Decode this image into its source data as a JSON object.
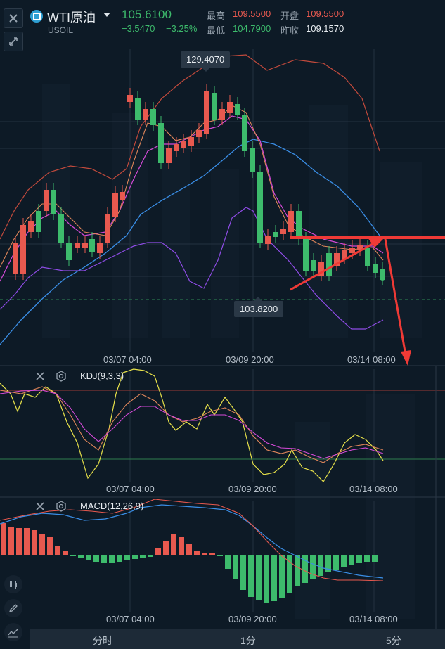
{
  "header": {
    "symbol": "WTI原油",
    "code": "USOIL",
    "price": "105.6100",
    "change": "−3.5470",
    "change_pct": "−3.25%",
    "stats": {
      "high_label": "最高",
      "high_value": "109.5500",
      "low_label": "最低",
      "low_value": "104.7900",
      "open_label": "开盘",
      "open_value": "109.5500",
      "prev_close_label": "昨收",
      "prev_close_value": "109.1570"
    }
  },
  "main_chart": {
    "high_marker": "129.4070",
    "low_marker": "103.8200",
    "time_labels": [
      "03/07 04:00",
      "03/09 20:00",
      "03/14 08:00"
    ]
  },
  "kdj": {
    "title": "KDJ(9,3,3)",
    "time_labels": [
      "03/07 04:00",
      "03/09 20:00",
      "03/14 08:00"
    ]
  },
  "macd": {
    "title": "MACD(12,26,9)",
    "time_labels": [
      "03/07 04:00",
      "03/09 20:00",
      "03/14 08:00"
    ]
  },
  "bottom_tabs": [
    "分时",
    "1分",
    "5分"
  ],
  "colors": {
    "up": "#e8594f",
    "down": "#3dbb6c",
    "accent_blue": "#3a8ee6",
    "magenta": "#d64ad9",
    "purple": "#8f4ce6",
    "annotation": "#ef3a36"
  },
  "icons": {
    "close": "close-icon",
    "collapse": "collapse-icon",
    "dropdown": "caret-down-icon",
    "settings": "settings-icon",
    "candle": "candlestick-icon",
    "pen": "pen-icon",
    "indicator": "indicator-icon"
  }
}
